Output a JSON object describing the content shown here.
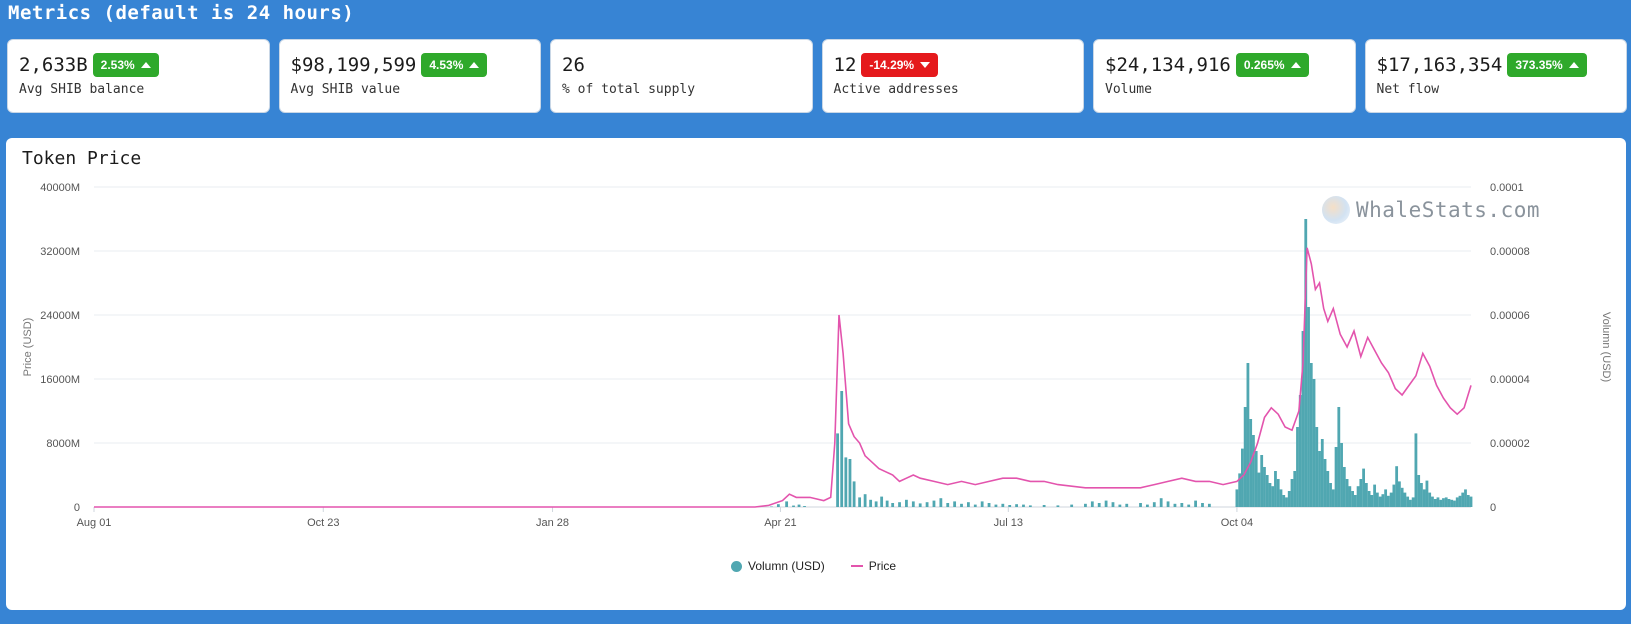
{
  "page": {
    "title": "Metrics (default is 24 hours)"
  },
  "colors": {
    "background": "#3784d4",
    "badge_up": "#2fa92b",
    "badge_down": "#e5191c",
    "volume": "#50a7b1",
    "price": "#e354ad"
  },
  "metrics": [
    {
      "value": "2,633B",
      "badge": "2.53%",
      "direction": "up",
      "label": "Avg SHIB balance"
    },
    {
      "value": "$98,199,599",
      "badge": "4.53%",
      "direction": "up",
      "label": "Avg SHIB value"
    },
    {
      "value": "26",
      "badge": "",
      "direction": "",
      "label": "% of total supply"
    },
    {
      "value": "12",
      "badge": "-14.29%",
      "direction": "down",
      "label": "Active addresses"
    },
    {
      "value": "$24,134,916",
      "badge": "0.265%",
      "direction": "up",
      "label": "Volume"
    },
    {
      "value": "$17,163,354",
      "badge": "373.35%",
      "direction": "up",
      "label": "Net flow"
    }
  ],
  "chart": {
    "title": "Token Price",
    "watermark": "WhaleStats.com"
  },
  "chart_data": {
    "type": "bar+line",
    "title": "Token Price",
    "x_ticks": [
      "Aug 01",
      "Oct 23",
      "Jan 28",
      "Apr 21",
      "Jul 13",
      "Oct 04"
    ],
    "left_axis": {
      "label": "Price (USD)",
      "ticks": [
        "0",
        "8000M",
        "16000M",
        "24000M",
        "32000M",
        "40000M"
      ],
      "range": [
        0,
        40000
      ]
    },
    "right_axis": {
      "label": "Volumn (USD)",
      "ticks": [
        "0",
        "0.00002",
        "0.00004",
        "0.00006",
        "0.00008",
        "0.0001"
      ],
      "range": [
        0,
        0.0001
      ]
    },
    "grid": true,
    "legend": {
      "position": "bottom-center",
      "items": [
        {
          "name": "Volumn (USD)",
          "kind": "dot"
        },
        {
          "name": "Price",
          "kind": "line"
        }
      ]
    },
    "series": [
      {
        "name": "Volumn (USD)",
        "type": "bar",
        "points": [
          [
            0.492,
            60
          ],
          [
            0.497,
            350
          ],
          [
            0.503,
            700
          ],
          [
            0.508,
            180
          ],
          [
            0.512,
            300
          ],
          [
            0.516,
            120
          ],
          [
            0.54,
            9200
          ],
          [
            0.543,
            14500
          ],
          [
            0.546,
            6200
          ],
          [
            0.549,
            6000
          ],
          [
            0.552,
            3200
          ],
          [
            0.556,
            1200
          ],
          [
            0.56,
            1600
          ],
          [
            0.564,
            900
          ],
          [
            0.568,
            700
          ],
          [
            0.572,
            1300
          ],
          [
            0.576,
            800
          ],
          [
            0.58,
            500
          ],
          [
            0.585,
            600
          ],
          [
            0.59,
            900
          ],
          [
            0.595,
            700
          ],
          [
            0.6,
            450
          ],
          [
            0.605,
            600
          ],
          [
            0.61,
            800
          ],
          [
            0.615,
            1100
          ],
          [
            0.62,
            500
          ],
          [
            0.625,
            700
          ],
          [
            0.63,
            400
          ],
          [
            0.635,
            600
          ],
          [
            0.64,
            300
          ],
          [
            0.645,
            700
          ],
          [
            0.65,
            500
          ],
          [
            0.655,
            300
          ],
          [
            0.66,
            400
          ],
          [
            0.665,
            250
          ],
          [
            0.67,
            350
          ],
          [
            0.675,
            300
          ],
          [
            0.68,
            200
          ],
          [
            0.69,
            250
          ],
          [
            0.7,
            200
          ],
          [
            0.71,
            300
          ],
          [
            0.72,
            400
          ],
          [
            0.725,
            700
          ],
          [
            0.73,
            500
          ],
          [
            0.735,
            800
          ],
          [
            0.74,
            600
          ],
          [
            0.745,
            300
          ],
          [
            0.75,
            400
          ],
          [
            0.76,
            500
          ],
          [
            0.765,
            300
          ],
          [
            0.77,
            600
          ],
          [
            0.775,
            1100
          ],
          [
            0.78,
            700
          ],
          [
            0.785,
            400
          ],
          [
            0.79,
            500
          ],
          [
            0.795,
            300
          ],
          [
            0.8,
            800
          ],
          [
            0.805,
            500
          ],
          [
            0.81,
            400
          ],
          [
            0.83,
            2200
          ],
          [
            0.832,
            4200
          ],
          [
            0.834,
            7300
          ],
          [
            0.836,
            12500
          ],
          [
            0.838,
            18000
          ],
          [
            0.84,
            11000
          ],
          [
            0.842,
            9000
          ],
          [
            0.844,
            7000
          ],
          [
            0.846,
            4300
          ],
          [
            0.848,
            6500
          ],
          [
            0.85,
            5000
          ],
          [
            0.852,
            4000
          ],
          [
            0.854,
            3000
          ],
          [
            0.856,
            2600
          ],
          [
            0.858,
            4500
          ],
          [
            0.86,
            3500
          ],
          [
            0.862,
            2200
          ],
          [
            0.864,
            1500
          ],
          [
            0.866,
            1200
          ],
          [
            0.868,
            2000
          ],
          [
            0.87,
            3500
          ],
          [
            0.872,
            4500
          ],
          [
            0.874,
            10000
          ],
          [
            0.876,
            14000
          ],
          [
            0.878,
            22000
          ],
          [
            0.88,
            36000
          ],
          [
            0.882,
            25000
          ],
          [
            0.884,
            18000
          ],
          [
            0.886,
            16000
          ],
          [
            0.888,
            10000
          ],
          [
            0.89,
            7000
          ],
          [
            0.892,
            8500
          ],
          [
            0.894,
            6000
          ],
          [
            0.896,
            4500
          ],
          [
            0.898,
            3000
          ],
          [
            0.9,
            2200
          ],
          [
            0.902,
            7500
          ],
          [
            0.904,
            12500
          ],
          [
            0.906,
            8000
          ],
          [
            0.908,
            5000
          ],
          [
            0.91,
            3500
          ],
          [
            0.912,
            2600
          ],
          [
            0.914,
            2000
          ],
          [
            0.916,
            1500
          ],
          [
            0.918,
            2600
          ],
          [
            0.92,
            3500
          ],
          [
            0.922,
            4800
          ],
          [
            0.924,
            3000
          ],
          [
            0.926,
            2000
          ],
          [
            0.928,
            1500
          ],
          [
            0.93,
            2800
          ],
          [
            0.932,
            1800
          ],
          [
            0.934,
            1300
          ],
          [
            0.936,
            1600
          ],
          [
            0.938,
            2200
          ],
          [
            0.94,
            1400
          ],
          [
            0.942,
            1800
          ],
          [
            0.944,
            2800
          ],
          [
            0.946,
            5100
          ],
          [
            0.948,
            3200
          ],
          [
            0.95,
            2400
          ],
          [
            0.952,
            1800
          ],
          [
            0.954,
            1300
          ],
          [
            0.956,
            900
          ],
          [
            0.958,
            1200
          ],
          [
            0.96,
            9200
          ],
          [
            0.962,
            4000
          ],
          [
            0.964,
            3000
          ],
          [
            0.966,
            2200
          ],
          [
            0.968,
            3300
          ],
          [
            0.97,
            1800
          ],
          [
            0.972,
            1300
          ],
          [
            0.974,
            1000
          ],
          [
            0.976,
            1200
          ],
          [
            0.978,
            900
          ],
          [
            0.98,
            1100
          ],
          [
            0.982,
            1200
          ],
          [
            0.984,
            1000
          ],
          [
            0.986,
            900
          ],
          [
            0.988,
            800
          ],
          [
            0.99,
            1200
          ],
          [
            0.992,
            1400
          ],
          [
            0.994,
            1800
          ],
          [
            0.996,
            2200
          ],
          [
            0.998,
            1500
          ],
          [
            1.0,
            1300
          ]
        ]
      },
      {
        "name": "Price",
        "type": "line",
        "points": [
          [
            0.0,
            0.0
          ],
          [
            0.48,
            0.0
          ],
          [
            0.49,
            5e-07
          ],
          [
            0.5,
            2e-06
          ],
          [
            0.505,
            4e-06
          ],
          [
            0.51,
            3e-06
          ],
          [
            0.52,
            3e-06
          ],
          [
            0.53,
            2e-06
          ],
          [
            0.535,
            3e-06
          ],
          [
            0.538,
            2e-05
          ],
          [
            0.541,
            6e-05
          ],
          [
            0.544,
            4.8e-05
          ],
          [
            0.548,
            2.6e-05
          ],
          [
            0.552,
            2.2e-05
          ],
          [
            0.556,
            2e-05
          ],
          [
            0.56,
            1.6e-05
          ],
          [
            0.565,
            1.4e-05
          ],
          [
            0.57,
            1.2e-05
          ],
          [
            0.575,
            1.1e-05
          ],
          [
            0.58,
            1e-05
          ],
          [
            0.585,
            8e-06
          ],
          [
            0.59,
            9e-06
          ],
          [
            0.595,
            1e-05
          ],
          [
            0.6,
            9e-06
          ],
          [
            0.61,
            8e-06
          ],
          [
            0.62,
            7e-06
          ],
          [
            0.63,
            8e-06
          ],
          [
            0.64,
            7e-06
          ],
          [
            0.65,
            8e-06
          ],
          [
            0.66,
            9e-06
          ],
          [
            0.67,
            9e-06
          ],
          [
            0.68,
            8e-06
          ],
          [
            0.69,
            8e-06
          ],
          [
            0.7,
            7e-06
          ],
          [
            0.72,
            6e-06
          ],
          [
            0.74,
            6e-06
          ],
          [
            0.76,
            6e-06
          ],
          [
            0.77,
            7e-06
          ],
          [
            0.78,
            8e-06
          ],
          [
            0.79,
            9e-06
          ],
          [
            0.8,
            8e-06
          ],
          [
            0.81,
            8e-06
          ],
          [
            0.82,
            7e-06
          ],
          [
            0.83,
            8e-06
          ],
          [
            0.835,
            1e-05
          ],
          [
            0.84,
            1.4e-05
          ],
          [
            0.845,
            2e-05
          ],
          [
            0.85,
            2.8e-05
          ],
          [
            0.855,
            3.1e-05
          ],
          [
            0.86,
            2.9e-05
          ],
          [
            0.865,
            2.5e-05
          ],
          [
            0.87,
            2.4e-05
          ],
          [
            0.875,
            3e-05
          ],
          [
            0.878,
            4.5e-05
          ],
          [
            0.881,
            8.1e-05
          ],
          [
            0.884,
            7.6e-05
          ],
          [
            0.887,
            6.8e-05
          ],
          [
            0.89,
            7e-05
          ],
          [
            0.893,
            6.2e-05
          ],
          [
            0.896,
            5.8e-05
          ],
          [
            0.9,
            6.2e-05
          ],
          [
            0.905,
            5.4e-05
          ],
          [
            0.91,
            5e-05
          ],
          [
            0.915,
            5.5e-05
          ],
          [
            0.92,
            4.7e-05
          ],
          [
            0.925,
            5.3e-05
          ],
          [
            0.93,
            4.9e-05
          ],
          [
            0.935,
            4.5e-05
          ],
          [
            0.94,
            4.2e-05
          ],
          [
            0.945,
            3.7e-05
          ],
          [
            0.95,
            3.5e-05
          ],
          [
            0.955,
            3.8e-05
          ],
          [
            0.96,
            4.1e-05
          ],
          [
            0.965,
            4.8e-05
          ],
          [
            0.97,
            4.4e-05
          ],
          [
            0.975,
            3.8e-05
          ],
          [
            0.98,
            3.4e-05
          ],
          [
            0.985,
            3.1e-05
          ],
          [
            0.99,
            2.9e-05
          ],
          [
            0.995,
            3.1e-05
          ],
          [
            1.0,
            3.8e-05
          ]
        ],
        "note_x": "x is relative position along the time axis (0 = Aug 01, 1 = last date); price plotted against right axis"
      }
    ]
  }
}
